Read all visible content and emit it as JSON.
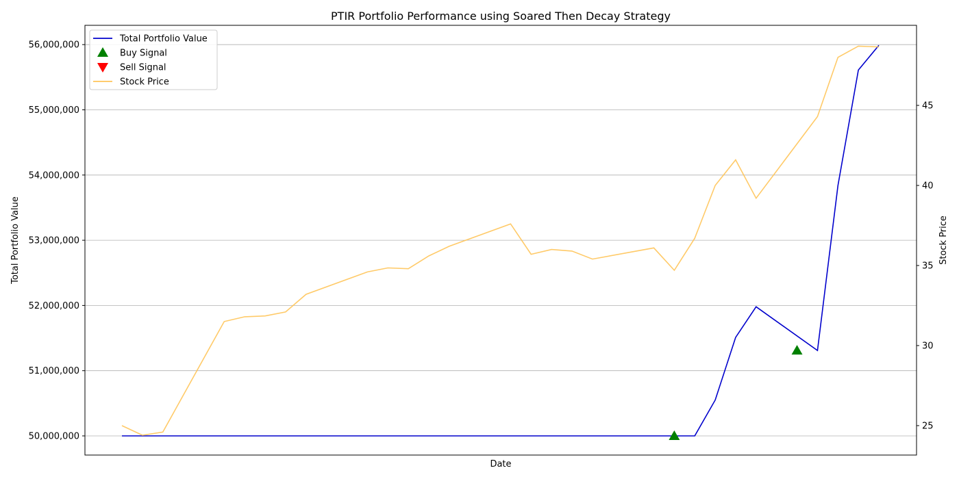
{
  "chart_data": {
    "type": "line",
    "title": "PTIR Portfolio Performance using Soared Then Decay Strategy",
    "xlabel": "Date",
    "ylabel_left": "Total Portfolio Value",
    "ylabel_right": "Stock Price",
    "ylim_left": [
      49700000,
      56300000
    ],
    "ylim_right": [
      24,
      49.5
    ],
    "yticks_left": [
      "50,000,000",
      "51,000,000",
      "52,000,000",
      "53,000,000",
      "54,000,000",
      "55,000,000",
      "56,000,000"
    ],
    "yticks_right": [
      "25",
      "30",
      "35",
      "40",
      "45"
    ],
    "grid": "horizontal",
    "legend_placement": "upper-left",
    "x": [
      0,
      1,
      2,
      5,
      6,
      7,
      8,
      9,
      12,
      13,
      14,
      15,
      16,
      19,
      20,
      21,
      22,
      23,
      26,
      27,
      28,
      29,
      30,
      31,
      34,
      35,
      36,
      37
    ],
    "series": [
      {
        "name": "Total Portfolio Value",
        "color": "#0000cc",
        "axis": "left",
        "values": [
          50000000,
          50000000,
          50000000,
          50000000,
          50000000,
          50000000,
          50000000,
          50000000,
          50000000,
          50000000,
          50000000,
          50000000,
          50000000,
          50000000,
          50000000,
          50000000,
          50000000,
          50000000,
          50000000,
          50000000,
          50000000,
          50550000,
          51510000,
          51980000,
          51310000,
          53840000,
          55610000,
          55990000
        ]
      },
      {
        "name": "Stock Price",
        "color": "#ffc458",
        "axis": "right",
        "values": [
          25.0,
          24.4,
          24.6,
          31.5,
          31.8,
          31.85,
          32.1,
          33.2,
          34.6,
          34.85,
          34.8,
          35.6,
          36.2,
          37.6,
          35.7,
          36.0,
          35.9,
          35.4,
          36.1,
          34.7,
          36.7,
          40.0,
          41.6,
          39.2,
          44.3,
          48.0,
          48.7,
          48.65
        ]
      }
    ],
    "buy_signals": [
      {
        "x": 27,
        "value": 50000000
      },
      {
        "x": 33,
        "value": 51310000
      }
    ],
    "sell_signals": [],
    "legend": [
      {
        "label": "Total Portfolio Value",
        "type": "line",
        "color": "#0000cc"
      },
      {
        "label": "Buy Signal",
        "type": "triangle-up",
        "color": "#008000"
      },
      {
        "label": "Sell Signal",
        "type": "triangle-down",
        "color": "#ff0000"
      },
      {
        "label": "Stock Price",
        "type": "line",
        "color": "#ffc458"
      }
    ]
  }
}
